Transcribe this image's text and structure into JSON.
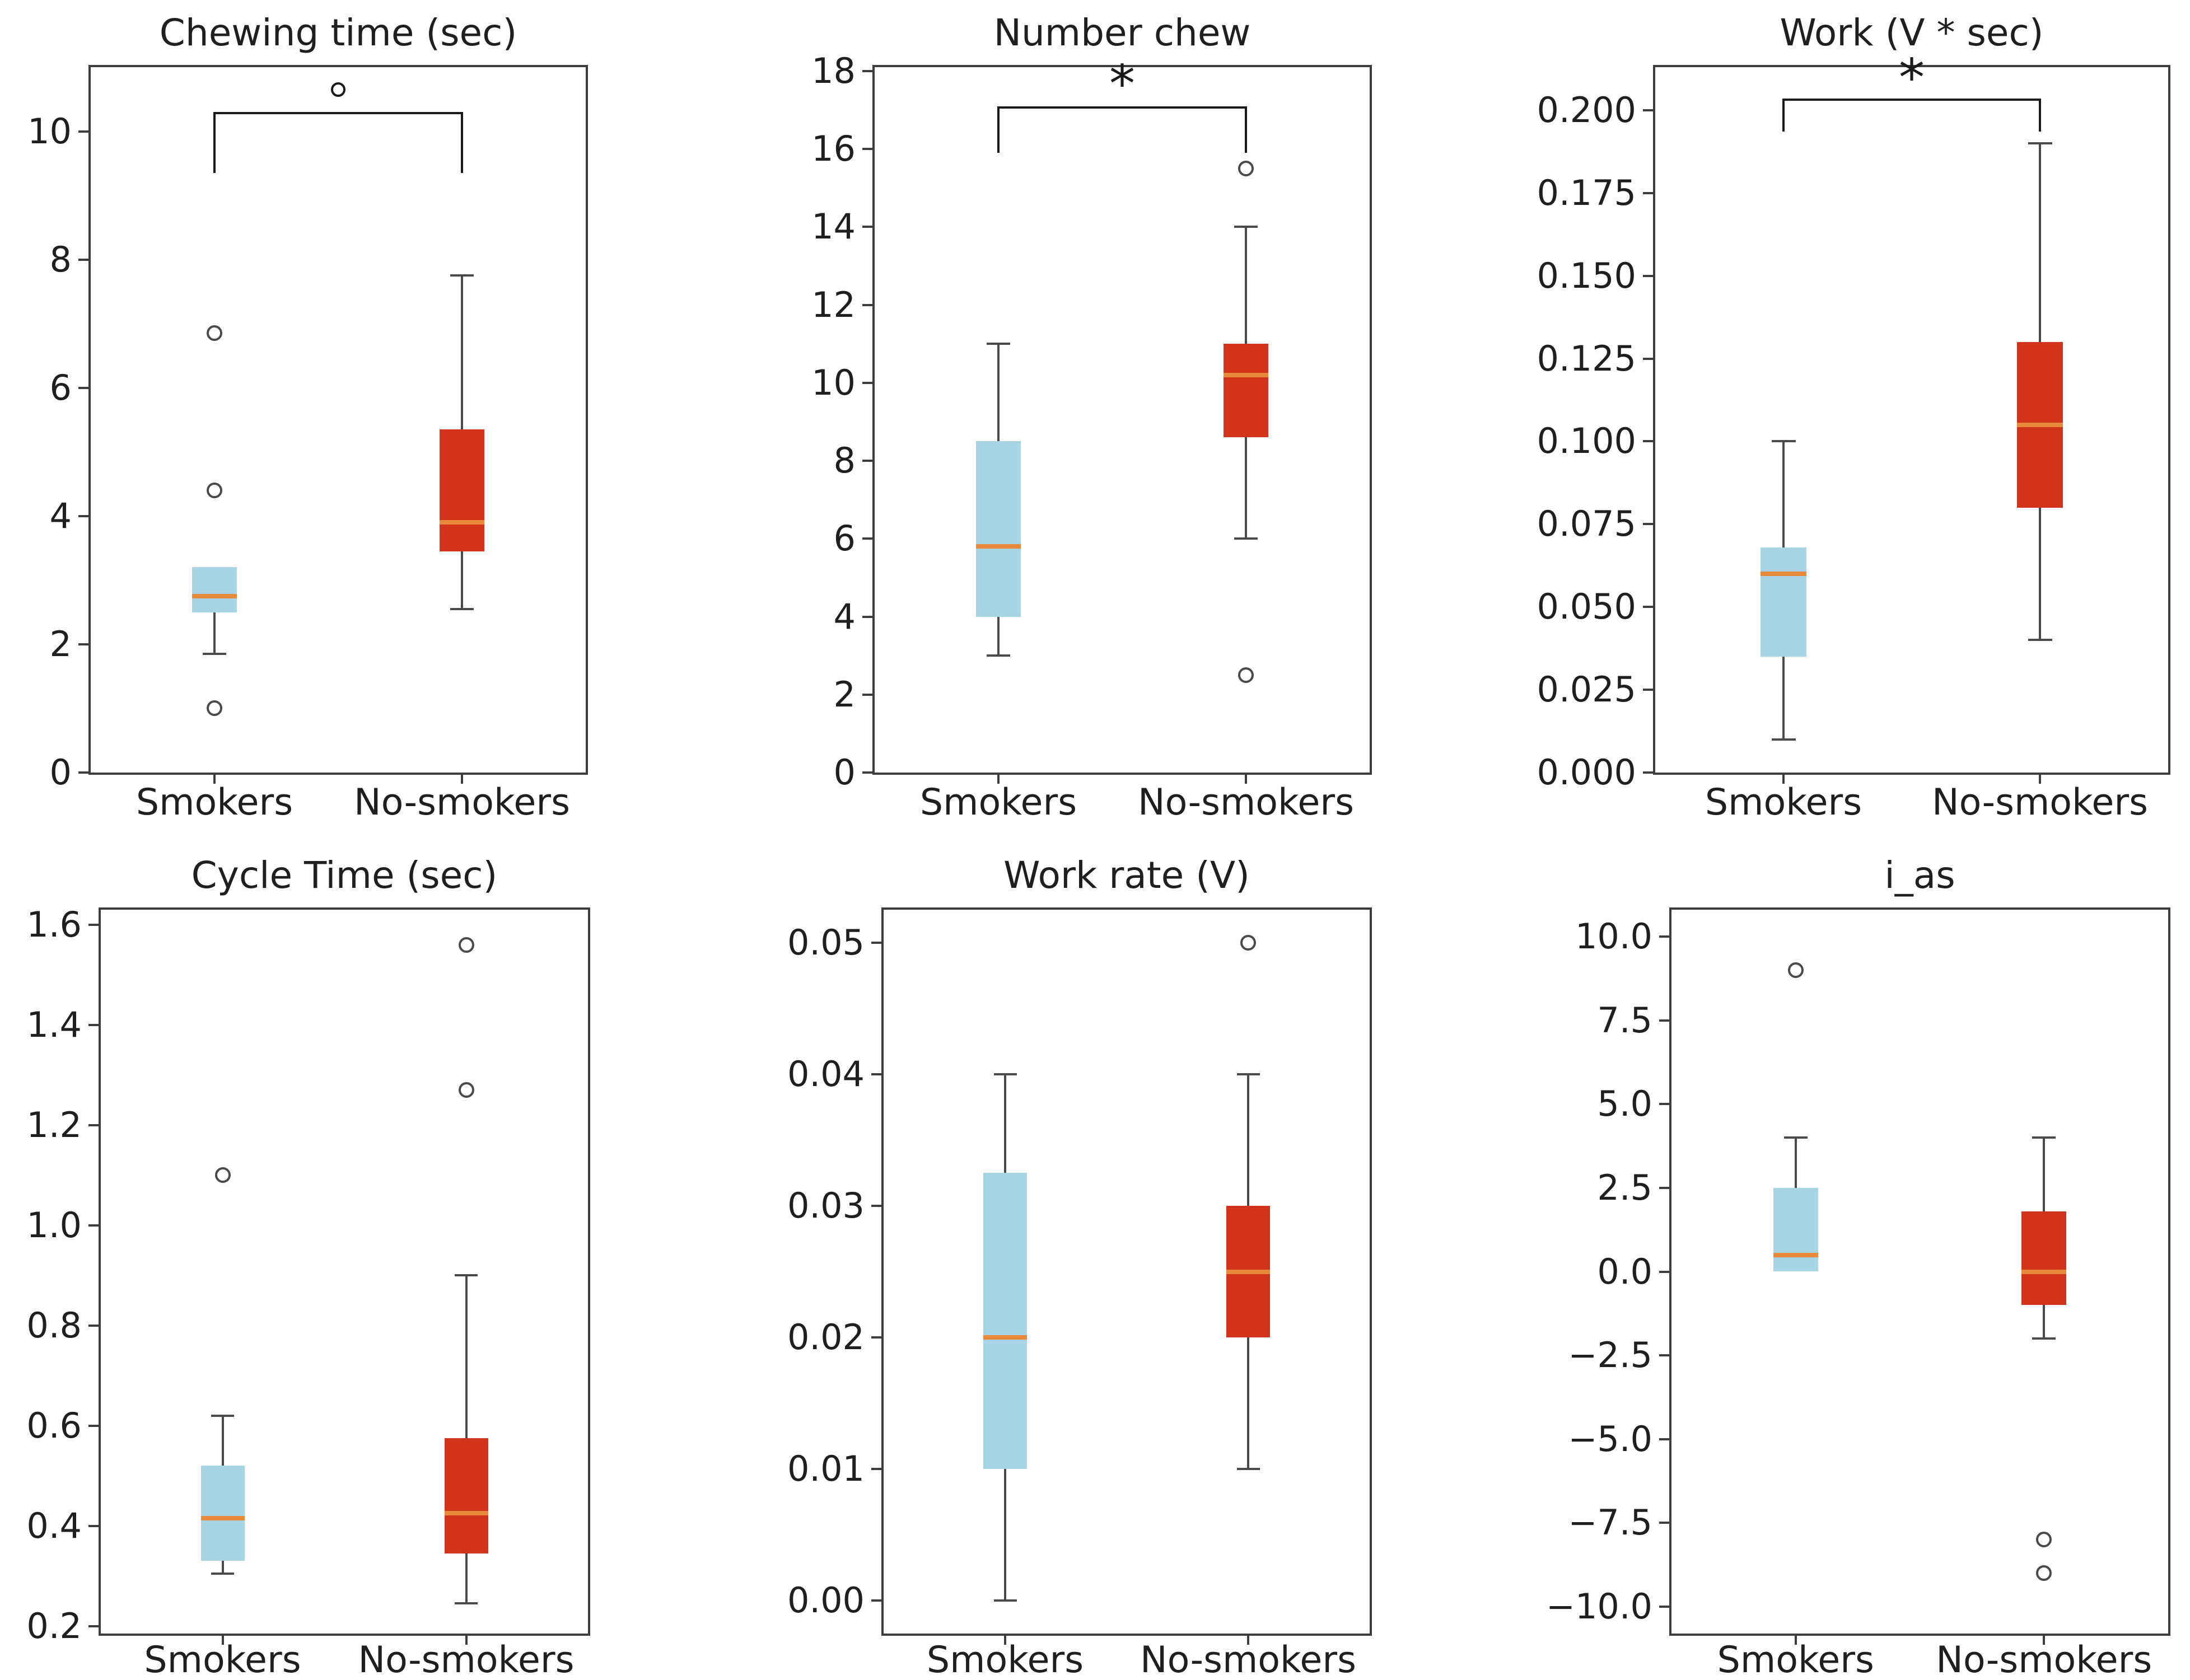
{
  "figure": {
    "layout": {
      "rows": 2,
      "cols": 3,
      "x_positions": [
        0.25,
        0.75
      ],
      "grid": false,
      "legend": "none"
    },
    "palette": {
      "smokers_box": "#a8d5e5",
      "no_smokers_box": "#d1331b",
      "median": "#e8893c",
      "whisker": "#4a4a4a",
      "spine": "#3d3d3d",
      "text": "#1f1f1f",
      "bracket": "#1a1a1a",
      "background": "#ffffff"
    }
  },
  "chart_data": [
    {
      "type": "box",
      "title": "Chewing time (sec)",
      "categories": [
        "Smokers",
        "No-smokers"
      ],
      "ylim": [
        0,
        11.0
      ],
      "yticks": [
        {
          "v": 0,
          "label": "0"
        },
        {
          "v": 2,
          "label": "2"
        },
        {
          "v": 4,
          "label": "4"
        },
        {
          "v": 6,
          "label": "6"
        },
        {
          "v": 8,
          "label": "8"
        },
        {
          "v": 10,
          "label": "10"
        }
      ],
      "boxes": [
        {
          "label": "Smokers",
          "color": "#a8d5e5",
          "whislo": 1.85,
          "q1": 2.5,
          "med": 2.75,
          "q3": 3.2,
          "whishi": 3.2,
          "outliers": [
            1.0,
            4.4,
            6.85
          ]
        },
        {
          "label": "No-smokers",
          "color": "#d1331b",
          "whislo": 2.55,
          "q1": 3.45,
          "med": 3.9,
          "q3": 5.35,
          "whishi": 7.75,
          "outliers": []
        }
      ],
      "significance": {
        "marker": "circle",
        "symbol": "°",
        "line_y": 10.3,
        "drop_y": 9.35,
        "symbol_y": 10.65
      }
    },
    {
      "type": "box",
      "title": "Number chew",
      "categories": [
        "Smokers",
        "No-smokers"
      ],
      "ylim": [
        0,
        18.1
      ],
      "yticks": [
        {
          "v": 0,
          "label": "0"
        },
        {
          "v": 2,
          "label": "2"
        },
        {
          "v": 4,
          "label": "4"
        },
        {
          "v": 6,
          "label": "6"
        },
        {
          "v": 8,
          "label": "8"
        },
        {
          "v": 10,
          "label": "10"
        },
        {
          "v": 12,
          "label": "12"
        },
        {
          "v": 14,
          "label": "14"
        },
        {
          "v": 16,
          "label": "16"
        },
        {
          "v": 18,
          "label": "18"
        }
      ],
      "boxes": [
        {
          "label": "Smokers",
          "color": "#a8d5e5",
          "whislo": 3.0,
          "q1": 4.0,
          "med": 5.8,
          "q3": 8.5,
          "whishi": 11.0,
          "outliers": []
        },
        {
          "label": "No-smokers",
          "color": "#d1331b",
          "whislo": 6.0,
          "q1": 8.6,
          "med": 10.2,
          "q3": 11.0,
          "whishi": 14.0,
          "outliers": [
            15.5,
            2.5
          ]
        }
      ],
      "significance": {
        "marker": "asterisk",
        "symbol": "*",
        "line_y": 17.1,
        "drop_y": 15.9,
        "symbol_y": 17.55
      }
    },
    {
      "type": "box",
      "title": "Work (V * sec)",
      "categories": [
        "Smokers",
        "No-smokers"
      ],
      "ylim": [
        0,
        0.213
      ],
      "yticks": [
        {
          "v": 0.0,
          "label": "0.000"
        },
        {
          "v": 0.025,
          "label": "0.025"
        },
        {
          "v": 0.05,
          "label": "0.050"
        },
        {
          "v": 0.075,
          "label": "0.075"
        },
        {
          "v": 0.1,
          "label": "0.100"
        },
        {
          "v": 0.125,
          "label": "0.125"
        },
        {
          "v": 0.15,
          "label": "0.150"
        },
        {
          "v": 0.175,
          "label": "0.175"
        },
        {
          "v": 0.2,
          "label": "0.200"
        }
      ],
      "boxes": [
        {
          "label": "Smokers",
          "color": "#a8d5e5",
          "whislo": 0.01,
          "q1": 0.035,
          "med": 0.06,
          "q3": 0.068,
          "whishi": 0.1,
          "outliers": []
        },
        {
          "label": "No-smokers",
          "color": "#d1331b",
          "whislo": 0.04,
          "q1": 0.08,
          "med": 0.105,
          "q3": 0.13,
          "whishi": 0.19,
          "outliers": []
        }
      ],
      "significance": {
        "marker": "asterisk",
        "symbol": "*",
        "line_y": 0.2035,
        "drop_y": 0.1935,
        "symbol_y": 0.2085
      }
    },
    {
      "type": "box",
      "title": "Cycle Time (sec)",
      "categories": [
        "Smokers",
        "No-smokers"
      ],
      "ylim": [
        0.185,
        1.63
      ],
      "yticks": [
        {
          "v": 0.2,
          "label": "0.2"
        },
        {
          "v": 0.4,
          "label": "0.4"
        },
        {
          "v": 0.6,
          "label": "0.6"
        },
        {
          "v": 0.8,
          "label": "0.8"
        },
        {
          "v": 1.0,
          "label": "1.0"
        },
        {
          "v": 1.2,
          "label": "1.2"
        },
        {
          "v": 1.4,
          "label": "1.4"
        },
        {
          "v": 1.6,
          "label": "1.6"
        }
      ],
      "boxes": [
        {
          "label": "Smokers",
          "color": "#a8d5e5",
          "whislo": 0.305,
          "q1": 0.33,
          "med": 0.415,
          "q3": 0.52,
          "whishi": 0.62,
          "outliers": [
            1.1
          ]
        },
        {
          "label": "No-smokers",
          "color": "#d1331b",
          "whislo": 0.245,
          "q1": 0.345,
          "med": 0.425,
          "q3": 0.575,
          "whishi": 0.9,
          "outliers": [
            1.27,
            1.56
          ]
        }
      ],
      "significance": null
    },
    {
      "type": "box",
      "title": "Work rate (V)",
      "categories": [
        "Smokers",
        "No-smokers"
      ],
      "ylim": [
        -0.0025,
        0.0525
      ],
      "yticks": [
        {
          "v": 0.0,
          "label": "0.00"
        },
        {
          "v": 0.01,
          "label": "0.01"
        },
        {
          "v": 0.02,
          "label": "0.02"
        },
        {
          "v": 0.03,
          "label": "0.03"
        },
        {
          "v": 0.04,
          "label": "0.04"
        },
        {
          "v": 0.05,
          "label": "0.05"
        }
      ],
      "boxes": [
        {
          "label": "Smokers",
          "color": "#a8d5e5",
          "whislo": 0.0,
          "q1": 0.01,
          "med": 0.02,
          "q3": 0.0325,
          "whishi": 0.04,
          "outliers": []
        },
        {
          "label": "No-smokers",
          "color": "#d1331b",
          "whislo": 0.01,
          "q1": 0.02,
          "med": 0.025,
          "q3": 0.03,
          "whishi": 0.04,
          "outliers": [
            0.05
          ]
        }
      ],
      "significance": null
    },
    {
      "type": "box",
      "title": "i_as",
      "categories": [
        "Smokers",
        "No-smokers"
      ],
      "ylim": [
        -10.8,
        10.8
      ],
      "yticks": [
        {
          "v": -10.0,
          "label": "−10.0"
        },
        {
          "v": -7.5,
          "label": "−7.5"
        },
        {
          "v": -5.0,
          "label": "−5.0"
        },
        {
          "v": -2.5,
          "label": "−2.5"
        },
        {
          "v": 0.0,
          "label": "0.0"
        },
        {
          "v": 2.5,
          "label": "2.5"
        },
        {
          "v": 5.0,
          "label": "5.0"
        },
        {
          "v": 7.5,
          "label": "7.5"
        },
        {
          "v": 10.0,
          "label": "10.0"
        }
      ],
      "boxes": [
        {
          "label": "Smokers",
          "color": "#a8d5e5",
          "whislo": 0.0,
          "q1": 0.0,
          "med": 0.5,
          "q3": 2.5,
          "whishi": 4.0,
          "outliers": [
            9.0
          ]
        },
        {
          "label": "No-smokers",
          "color": "#d1331b",
          "whislo": -2.0,
          "q1": -1.0,
          "med": 0.0,
          "q3": 1.8,
          "whishi": 4.0,
          "outliers": [
            -8.0,
            -9.0
          ]
        }
      ],
      "significance": null
    }
  ]
}
